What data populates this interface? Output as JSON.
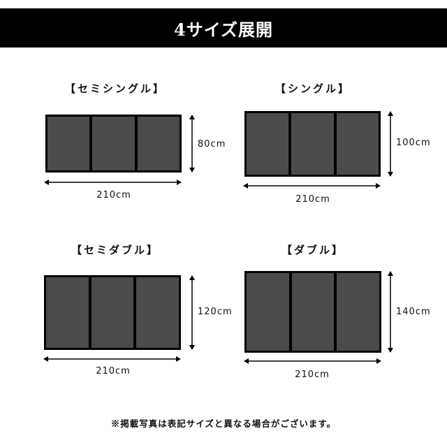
{
  "header": {
    "title": "4サイズ展開"
  },
  "sizes": [
    {
      "name": "【セミシングル】",
      "width": "210cm",
      "depth": "80cm",
      "panels": 3
    },
    {
      "name": "【シングル】",
      "width": "210cm",
      "depth": "100cm",
      "panels": 3
    },
    {
      "name": "【セミダブル】",
      "width": "210cm",
      "depth": "120cm",
      "panels": 3
    },
    {
      "name": "【ダブル】",
      "width": "210cm",
      "depth": "140cm",
      "panels": 3
    }
  ],
  "footnote": "※掲載写真は表記サイズと異なる場合がございます。",
  "colors": {
    "header_bg": "#000000",
    "panel_fill": "#4b4b4b",
    "panel_border": "#000000"
  }
}
